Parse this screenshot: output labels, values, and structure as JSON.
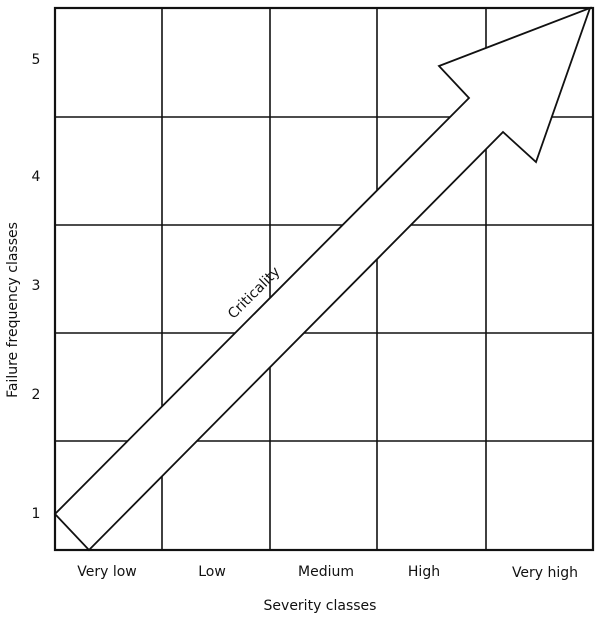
{
  "diagram": {
    "arrow_label": "Criticality",
    "x_axis": {
      "title": "Severity classes",
      "classes": [
        "Very low",
        "Low",
        "Medium",
        "High",
        "Very high"
      ]
    },
    "y_axis": {
      "title": "Failure frequency classes",
      "classes": [
        "1",
        "2",
        "3",
        "4",
        "5"
      ]
    },
    "line_color": "#111111",
    "background_color": "#ffffff"
  }
}
